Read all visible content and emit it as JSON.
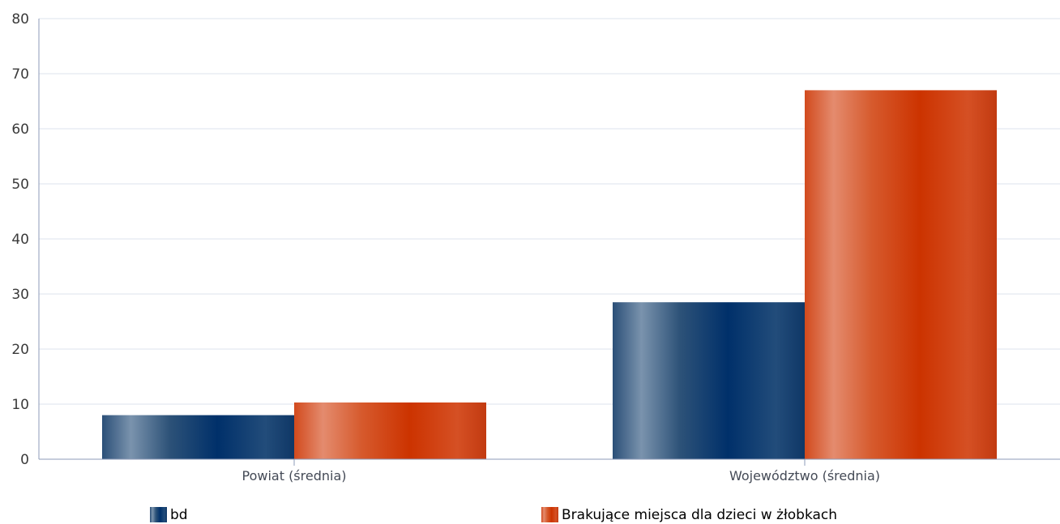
{
  "chart_data": {
    "type": "bar",
    "categories": [
      "Powiat (średnia)",
      "Województwo (średnia)"
    ],
    "series": [
      {
        "name": "bd",
        "values": [
          8,
          28.5
        ],
        "color": "#00306a"
      },
      {
        "name": "Brakujące miejsca dla dzieci w żłobkach",
        "values": [
          10.3,
          67
        ],
        "color": "#cc3300"
      }
    ],
    "ylim": [
      0,
      80
    ],
    "yticks": [
      0,
      10,
      20,
      30,
      40,
      50,
      60,
      70,
      80
    ],
    "grid": true,
    "legend": "bottom",
    "title": "",
    "xlabel": "",
    "ylabel": ""
  }
}
